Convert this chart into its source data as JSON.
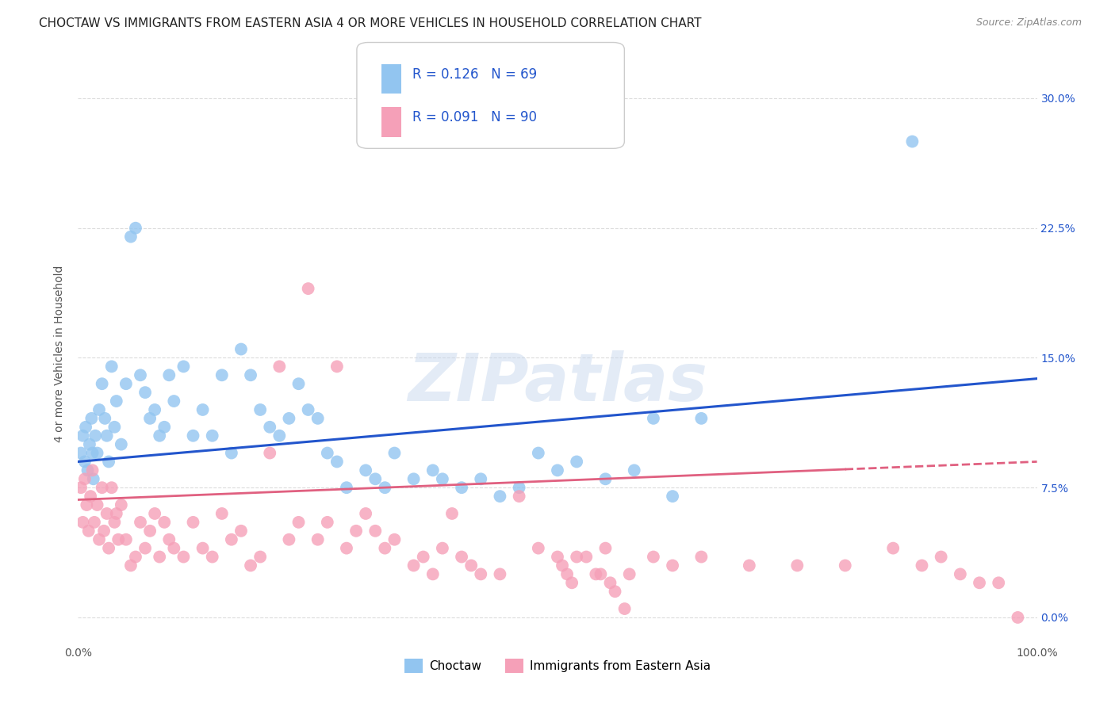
{
  "title": "CHOCTAW VS IMMIGRANTS FROM EASTERN ASIA 4 OR MORE VEHICLES IN HOUSEHOLD CORRELATION CHART",
  "source": "Source: ZipAtlas.com",
  "ylabel": "4 or more Vehicles in Household",
  "xlim": [
    0,
    100
  ],
  "ylim": [
    -1.5,
    32
  ],
  "yticks": [
    0,
    7.5,
    15.0,
    22.5,
    30.0
  ],
  "xticks": [
    0,
    25,
    50,
    75,
    100
  ],
  "xtick_labels": [
    "0.0%",
    "",
    "",
    "",
    "100.0%"
  ],
  "ytick_labels": [
    "0.0%",
    "7.5%",
    "15.0%",
    "22.5%",
    "30.0%"
  ],
  "series1_label": "Choctaw",
  "series2_label": "Immigrants from Eastern Asia",
  "series1_color": "#92c5f0",
  "series2_color": "#f5a0b8",
  "series1_line_color": "#2255cc",
  "series2_line_color": "#e06080",
  "series1_R": 0.126,
  "series1_N": 69,
  "series2_R": 0.091,
  "series2_N": 90,
  "watermark": "ZIPatlas",
  "background_color": "#ffffff",
  "grid_color": "#cccccc",
  "title_fontsize": 11,
  "series1_x": [
    0.3,
    0.5,
    0.7,
    0.8,
    1.0,
    1.2,
    1.4,
    1.5,
    1.6,
    1.8,
    2.0,
    2.2,
    2.5,
    2.8,
    3.0,
    3.2,
    3.5,
    3.8,
    4.0,
    4.5,
    5.0,
    5.5,
    6.0,
    6.5,
    7.0,
    7.5,
    8.0,
    8.5,
    9.0,
    9.5,
    10.0,
    11.0,
    12.0,
    13.0,
    14.0,
    15.0,
    16.0,
    17.0,
    18.0,
    19.0,
    20.0,
    21.0,
    22.0,
    23.0,
    24.0,
    25.0,
    26.0,
    27.0,
    28.0,
    30.0,
    31.0,
    32.0,
    33.0,
    35.0,
    37.0,
    38.0,
    40.0,
    42.0,
    44.0,
    46.0,
    48.0,
    50.0,
    52.0,
    55.0,
    58.0,
    60.0,
    62.0,
    65.0,
    87.0
  ],
  "series1_y": [
    9.5,
    10.5,
    9.0,
    11.0,
    8.5,
    10.0,
    11.5,
    9.5,
    8.0,
    10.5,
    9.5,
    12.0,
    13.5,
    11.5,
    10.5,
    9.0,
    14.5,
    11.0,
    12.5,
    10.0,
    13.5,
    22.0,
    22.5,
    14.0,
    13.0,
    11.5,
    12.0,
    10.5,
    11.0,
    14.0,
    12.5,
    14.5,
    10.5,
    12.0,
    10.5,
    14.0,
    9.5,
    15.5,
    14.0,
    12.0,
    11.0,
    10.5,
    11.5,
    13.5,
    12.0,
    11.5,
    9.5,
    9.0,
    7.5,
    8.5,
    8.0,
    7.5,
    9.5,
    8.0,
    8.5,
    8.0,
    7.5,
    8.0,
    7.0,
    7.5,
    9.5,
    8.5,
    9.0,
    8.0,
    8.5,
    11.5,
    7.0,
    11.5,
    27.5
  ],
  "series2_x": [
    0.3,
    0.5,
    0.7,
    0.9,
    1.1,
    1.3,
    1.5,
    1.7,
    2.0,
    2.2,
    2.5,
    2.7,
    3.0,
    3.2,
    3.5,
    3.8,
    4.0,
    4.2,
    4.5,
    5.0,
    5.5,
    6.0,
    6.5,
    7.0,
    7.5,
    8.0,
    8.5,
    9.0,
    9.5,
    10.0,
    11.0,
    12.0,
    13.0,
    14.0,
    15.0,
    16.0,
    17.0,
    18.0,
    19.0,
    20.0,
    21.0,
    22.0,
    23.0,
    24.0,
    25.0,
    26.0,
    27.0,
    28.0,
    29.0,
    30.0,
    31.0,
    32.0,
    33.0,
    35.0,
    36.0,
    37.0,
    38.0,
    39.0,
    40.0,
    41.0,
    42.0,
    44.0,
    46.0,
    48.0,
    50.0,
    52.0,
    54.0,
    55.0,
    57.0,
    60.0,
    62.0,
    65.0,
    70.0,
    75.0,
    80.0,
    85.0,
    88.0,
    90.0,
    92.0,
    94.0,
    96.0,
    98.0,
    50.5,
    51.0,
    51.5,
    53.0,
    54.5,
    55.5,
    56.0,
    57.5
  ],
  "series2_y": [
    7.5,
    5.5,
    8.0,
    6.5,
    5.0,
    7.0,
    8.5,
    5.5,
    6.5,
    4.5,
    7.5,
    5.0,
    6.0,
    4.0,
    7.5,
    5.5,
    6.0,
    4.5,
    6.5,
    4.5,
    3.0,
    3.5,
    5.5,
    4.0,
    5.0,
    6.0,
    3.5,
    5.5,
    4.5,
    4.0,
    3.5,
    5.5,
    4.0,
    3.5,
    6.0,
    4.5,
    5.0,
    3.0,
    3.5,
    9.5,
    14.5,
    4.5,
    5.5,
    19.0,
    4.5,
    5.5,
    14.5,
    4.0,
    5.0,
    6.0,
    5.0,
    4.0,
    4.5,
    3.0,
    3.5,
    2.5,
    4.0,
    6.0,
    3.5,
    3.0,
    2.5,
    2.5,
    7.0,
    4.0,
    3.5,
    3.5,
    2.5,
    4.0,
    0.5,
    3.5,
    3.0,
    3.5,
    3.0,
    3.0,
    3.0,
    4.0,
    3.0,
    3.5,
    2.5,
    2.0,
    2.0,
    0.0,
    3.0,
    2.5,
    2.0,
    3.5,
    2.5,
    2.0,
    1.5,
    2.5
  ],
  "reg1_x0": 0,
  "reg1_y0": 9.0,
  "reg1_x1": 100,
  "reg1_y1": 13.8,
  "reg2_x0": 0,
  "reg2_y0": 6.8,
  "reg2_x1": 100,
  "reg2_y1": 9.0,
  "reg2_solid_end": 80
}
